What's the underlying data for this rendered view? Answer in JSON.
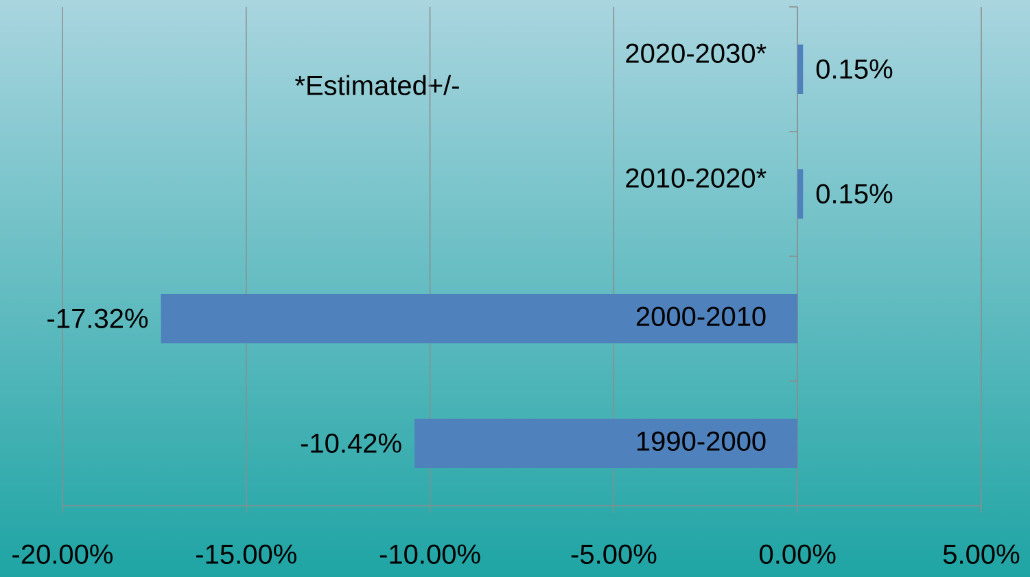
{
  "chart_data": {
    "type": "bar",
    "orientation": "horizontal",
    "annotation": "*Estimated+/-",
    "categories": [
      "1990-2000",
      "2000-2010",
      "2010-2020*",
      "2020-2030*"
    ],
    "values": [
      -10.42,
      -17.32,
      0.15,
      0.15
    ],
    "value_labels": [
      "-10.42%",
      "-17.32%",
      "0.15%",
      "0.15%"
    ],
    "color": "#4f81bd",
    "xlim": [
      -20,
      5
    ],
    "xticks": [
      {
        "value": -20,
        "label": "-20.00%"
      },
      {
        "value": -15,
        "label": "-15.00%"
      },
      {
        "value": -10,
        "label": "-10.00%"
      },
      {
        "value": -5,
        "label": "-5.00%"
      },
      {
        "value": 0,
        "label": "0.00%"
      },
      {
        "value": 5,
        "label": "5.00%"
      }
    ],
    "grid": true
  }
}
